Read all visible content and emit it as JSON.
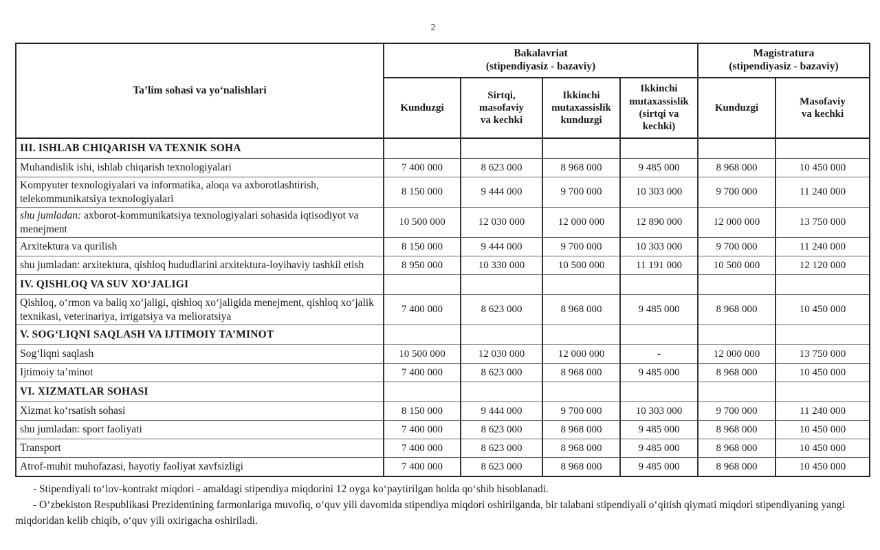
{
  "page": {
    "number": "2"
  },
  "table": {
    "col1_header": "Ta’lim sohasi va yo‘nalishlari",
    "group_headers": [
      {
        "label": "Bakalavriat\n(stipendiyasiz - bazaviy)",
        "span": 4
      },
      {
        "label": "Magistratura\n(stipendiyasiz - bazaviy)",
        "span": 2
      }
    ],
    "sub_headers": [
      "Kunduzgi",
      "Sirtqi,\nmasofaviy\nva kechki",
      "Ikkinchi\nmutaxassislik\nkunduzgi",
      "Ikkinchi\nmutaxassislik\n(sirtqi va\nkechki)",
      "Kunduzgi",
      "Masofaviy\nva kechki"
    ],
    "rows": [
      {
        "type": "section",
        "label": "III. ISHLAB CHIQARISH VA TEXNIK SOHA",
        "italic_prefix": "",
        "values": [
          "",
          "",
          "",
          "",
          "",
          ""
        ]
      },
      {
        "type": "data",
        "label": "Muhandislik ishi, ishlab chiqarish texnologiyalari",
        "italic_prefix": "",
        "values": [
          "7 400 000",
          "8 623 000",
          "8 968 000",
          "9 485 000",
          "8 968 000",
          "10 450 000"
        ]
      },
      {
        "type": "data",
        "label": "Kompyuter texnologiyalari va  informatika, aloqa va axborotlashtirish, telekommunikatsiya texnologiyalari",
        "italic_prefix": "",
        "values": [
          "8 150 000",
          "9 444 000",
          "9 700 000",
          "10 303 000",
          "9 700 000",
          "11 240 000"
        ]
      },
      {
        "type": "data",
        "label": " axborot-kommunikatsiya texnologiyalari sohasida iqtisodiyot va menejment",
        "italic_prefix": "shu jumladan:",
        "values": [
          "10 500 000",
          "12 030 000",
          "12 000 000",
          "12 890 000",
          "12 000 000",
          "13 750 000"
        ]
      },
      {
        "type": "data",
        "label": "Arxitektura va qurilish",
        "italic_prefix": "",
        "values": [
          "8 150 000",
          "9 444 000",
          "9 700 000",
          "10 303 000",
          "9 700 000",
          "11 240 000"
        ]
      },
      {
        "type": "data",
        "label": "shu jumladan: arxitektura, qishloq hududlarini arxitektura-loyihaviy tashkil etish",
        "italic_prefix": "",
        "values": [
          "8 950 000",
          "10 330 000",
          "10 500 000",
          "11 191 000",
          "10 500 000",
          "12 120 000"
        ]
      },
      {
        "type": "section",
        "label": "IV. QISHLOQ VA SUV XO‘JALIGI",
        "italic_prefix": "",
        "values": [
          "",
          "",
          "",
          "",
          "",
          ""
        ]
      },
      {
        "type": "data",
        "label": "Qishloq, o‘rmon va baliq xo‘jaligi, qishloq xo‘jaligida menejment, qishloq xo‘jalik texnikasi, veterinariya, irrigatsiya va melioratsiya",
        "italic_prefix": "",
        "values": [
          "7 400 000",
          "8 623 000",
          "8 968 000",
          "9 485 000",
          "8 968 000",
          "10 450 000"
        ]
      },
      {
        "type": "section",
        "label": "V. SOG‘LIQNI SAQLASH VA IJTIMOIY TA’MINOT",
        "italic_prefix": "",
        "values": [
          "",
          "",
          "",
          "",
          "",
          ""
        ]
      },
      {
        "type": "data",
        "label": "Sog‘liqni saqlash",
        "italic_prefix": "",
        "values": [
          "10 500 000",
          "12 030 000",
          "12 000 000",
          "-",
          "12 000 000",
          "13 750 000"
        ]
      },
      {
        "type": "data",
        "label": "Ijtimoiy ta’minot",
        "italic_prefix": "",
        "values": [
          "7 400 000",
          "8 623 000",
          "8 968 000",
          "9 485 000",
          "8 968 000",
          "10 450 000"
        ]
      },
      {
        "type": "section",
        "label": "VI. XIZMATLAR SOHASI",
        "italic_prefix": "",
        "values": [
          "",
          "",
          "",
          "",
          "",
          ""
        ]
      },
      {
        "type": "data",
        "label": "Xizmat ko‘rsatish sohasi",
        "italic_prefix": "",
        "values": [
          "8 150 000",
          "9 444 000",
          "9 700 000",
          "10 303 000",
          "9 700 000",
          "11 240 000"
        ]
      },
      {
        "type": "data",
        "label": "shu jumladan: sport faoliyati",
        "italic_prefix": "",
        "values": [
          "7 400 000",
          "8 623 000",
          "8 968 000",
          "9 485 000",
          "8 968 000",
          "10 450 000"
        ]
      },
      {
        "type": "data",
        "label": "Transport",
        "italic_prefix": "",
        "values": [
          "7 400 000",
          "8 623 000",
          "8 968 000",
          "9 485 000",
          "8 968 000",
          "10 450 000"
        ]
      },
      {
        "type": "data",
        "label": "Atrof-muhit muhofazasi, hayotiy faoliyat xavfsizligi",
        "italic_prefix": "",
        "values": [
          "7 400 000",
          "8 623 000",
          "8 968 000",
          "9 485 000",
          "8 968 000",
          "10 450 000"
        ]
      }
    ]
  },
  "notes": [
    "- Stipendiyali to‘lov-kontrakt miqdori - amaldagi stipendiya miqdorini 12 oyga ko‘paytirilgan holda qo‘shib hisoblanadi.",
    "- O‘zbekiston Respublikasi Prezidentining farmonlariga muvofiq, o‘quv yili davomida stipendiya miqdori oshirilganda, bir talabani stipendiyali o‘qitish qiymati miqdori stipendiyaning yangi miqdoridan kelib chiqib, o‘quv yili oxirigacha oshiriladi."
  ],
  "colors": {
    "page_background": "#ffffff",
    "text": "#1a1a1a",
    "table_border": "#232323"
  }
}
